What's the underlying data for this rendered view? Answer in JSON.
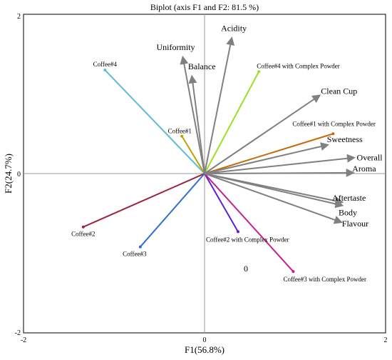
{
  "chart_data": {
    "type": "scatter",
    "title": "Biplot (axis F1 and F2: 81.5 %)",
    "xlabel": "F1(56.8%)",
    "ylabel": "F2(24.7%)",
    "xlim": [
      -2,
      2
    ],
    "ylim": [
      -2,
      2
    ],
    "x_ticks": [
      "-2",
      "0",
      "2"
    ],
    "y_ticks": [
      "-2",
      "0",
      "2"
    ],
    "origin_label": "0",
    "gridlines_through_origin": true,
    "variables": [
      {
        "name": "Acidity",
        "x": 0.3,
        "y": 1.7,
        "color": "#808080"
      },
      {
        "name": "Uniformity",
        "x": -0.24,
        "y": 1.46,
        "color": "#808080"
      },
      {
        "name": "Balance",
        "x": -0.14,
        "y": 1.22,
        "color": "#808080"
      },
      {
        "name": "Clean Cup",
        "x": 1.27,
        "y": 0.98,
        "color": "#808080"
      },
      {
        "name": "Sweetness",
        "x": 1.36,
        "y": 0.36,
        "color": "#808080"
      },
      {
        "name": "Overall",
        "x": 1.65,
        "y": 0.2,
        "color": "#808080"
      },
      {
        "name": "Aroma",
        "x": 1.64,
        "y": 0.01,
        "color": "#808080"
      },
      {
        "name": "Aftertaste",
        "x": 1.52,
        "y": -0.36,
        "color": "#808080"
      },
      {
        "name": "Body",
        "x": 1.52,
        "y": -0.4,
        "color": "#808080"
      },
      {
        "name": "Flavour",
        "x": 1.51,
        "y": -0.61,
        "color": "#808080"
      }
    ],
    "observations": [
      {
        "name": "Coffee#4",
        "x": -1.1,
        "y": 1.3,
        "color": "#5bbdcf"
      },
      {
        "name": "Coffee#4 with Complex Powder",
        "x": 0.6,
        "y": 1.28,
        "color": "#99e026"
      },
      {
        "name": "Coffee#1",
        "x": -0.25,
        "y": 0.47,
        "color": "#c2a000"
      },
      {
        "name": "Coffee#1 with Complex Powder",
        "x": 1.42,
        "y": 0.5,
        "color": "#c96a06"
      },
      {
        "name": "Coffee#2",
        "x": -1.34,
        "y": -0.67,
        "color": "#9b2440"
      },
      {
        "name": "Coffee#3",
        "x": -0.71,
        "y": -0.92,
        "color": "#2f6fcf"
      },
      {
        "name": "Coffee#2 with Complex Powder",
        "x": 0.37,
        "y": -0.73,
        "color": "#5a22d6"
      },
      {
        "name": "Coffee#3 with Complex Powder",
        "x": 0.98,
        "y": -1.23,
        "color": "#c51e8e"
      }
    ]
  }
}
